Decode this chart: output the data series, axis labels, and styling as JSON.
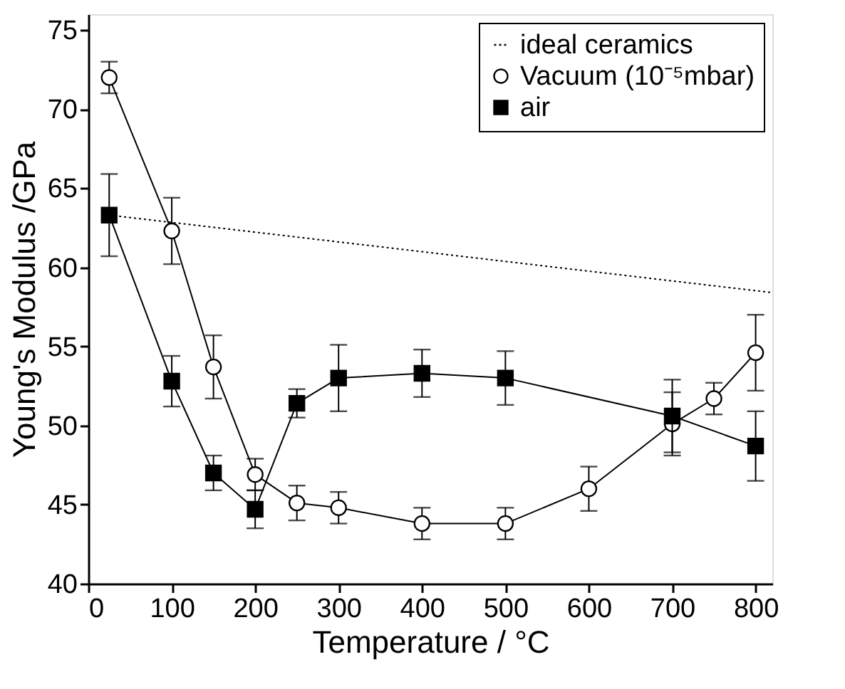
{
  "chart_data": {
    "type": "line",
    "xlabel": "Temperature / °C",
    "ylabel": "Young's Modulus /GPa",
    "xlim": [
      0,
      820
    ],
    "xticks": [
      0,
      100,
      200,
      300,
      400,
      500,
      600,
      700,
      800
    ],
    "ylim": [
      40,
      76
    ],
    "yticks": [
      40,
      45,
      50,
      55,
      60,
      65,
      70,
      75
    ],
    "grid": false,
    "legend": "top right",
    "series": [
      {
        "name": "ideal ceramics",
        "type": "line",
        "color": "#000000",
        "line_style": "dotted",
        "x": [
          25,
          820
        ],
        "values": [
          63.3,
          58.4
        ]
      },
      {
        "name": "Vacuum (10⁻⁵mbar)",
        "type": "line",
        "color": "#000000",
        "line_style": "solid",
        "marker": "circle",
        "x": [
          25,
          100,
          150,
          200,
          250,
          300,
          400,
          500,
          600,
          700,
          750,
          800
        ],
        "values": [
          72,
          62.3,
          53.7,
          46.9,
          45.1,
          44.8,
          43.8,
          43.8,
          46,
          50.1,
          51.7,
          54.6
        ],
        "errors": [
          1,
          2.1,
          2,
          1,
          1.1,
          1,
          1,
          1,
          1.4,
          2,
          1,
          2.4
        ]
      },
      {
        "name": "air",
        "type": "line",
        "color": "#000000",
        "line_style": "solid",
        "marker": "square",
        "x": [
          25,
          100,
          150,
          200,
          250,
          300,
          400,
          500,
          700,
          800
        ],
        "values": [
          63.3,
          52.8,
          47,
          44.7,
          51.4,
          53,
          53.3,
          53,
          50.6,
          48.7
        ],
        "errors": [
          2.6,
          1.6,
          1.1,
          1.2,
          0.9,
          2.1,
          1.5,
          1.7,
          2.3,
          2.2
        ]
      }
    ]
  }
}
